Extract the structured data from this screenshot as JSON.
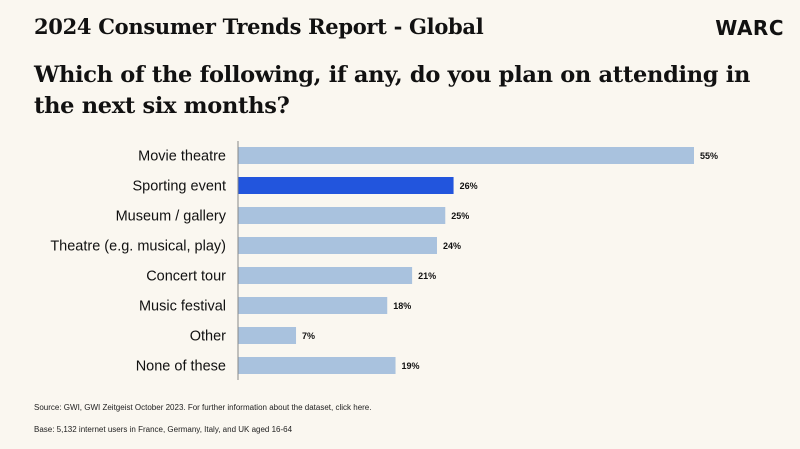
{
  "header": {
    "report_title": "2024 Consumer Trends Report - Global",
    "brand": "WARC"
  },
  "question": "Which of the following, if any, do you plan on attending in the next six months?",
  "footer": {
    "source": "Source: GWI, GWI Zeitgeist October 2023. For further information about the dataset, click here.",
    "base": "Base: 5,132 internet users in France, Germany, Italy, and UK aged 16-64"
  },
  "colors": {
    "bar": "#a9c2de",
    "highlight": "#2255dd",
    "axis": "#888888"
  },
  "chart_data": {
    "type": "bar",
    "orientation": "horizontal",
    "categories": [
      "Movie theatre",
      "Sporting event",
      "Museum / gallery",
      "Theatre (e.g. musical, play)",
      "Concert tour",
      "Music festival",
      "Other",
      "None of these"
    ],
    "values": [
      55,
      26,
      25,
      24,
      21,
      18,
      7,
      19
    ],
    "value_labels": [
      "55%",
      "26%",
      "25%",
      "24%",
      "21%",
      "18%",
      "7%",
      "19%"
    ],
    "highlight": "Sporting event",
    "xlim": [
      0,
      55
    ],
    "grid": false,
    "legend": "none"
  }
}
